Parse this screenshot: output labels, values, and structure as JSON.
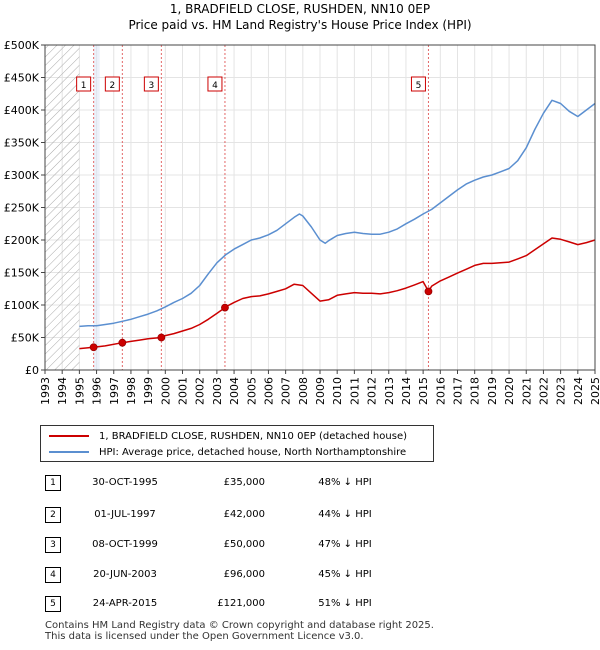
{
  "title_line1": "1, BRADFIELD CLOSE, RUSHDEN, NN10 0EP",
  "title_line2": "Price paid vs. HM Land Registry's House Price Index (HPI)",
  "colors": {
    "property": "#cc0000",
    "hpi": "#5b8fd0",
    "hatch": "#aaaaaa",
    "shade": "#dde6f5"
  },
  "legend": {
    "property": "1, BRADFIELD CLOSE, RUSHDEN, NN10 0EP (detached house)",
    "hpi": "HPI: Average price, detached house, North Northamptonshire"
  },
  "sales": [
    {
      "num": "1",
      "date": "30-OCT-1995",
      "price": "£35,000",
      "hpi": "48% ↓ HPI"
    },
    {
      "num": "2",
      "date": "01-JUL-1997",
      "price": "£42,000",
      "hpi": "44% ↓ HPI"
    },
    {
      "num": "3",
      "date": "08-OCT-1999",
      "price": "£50,000",
      "hpi": "47% ↓ HPI"
    },
    {
      "num": "4",
      "date": "20-JUN-2003",
      "price": "£96,000",
      "hpi": "45% ↓ HPI"
    },
    {
      "num": "5",
      "date": "24-APR-2015",
      "price": "£121,000",
      "hpi": "51% ↓ HPI"
    }
  ],
  "footer_line1": "Contains HM Land Registry data © Crown copyright and database right 2025.",
  "footer_line2": "This data is licensed under the Open Government Licence v3.0.",
  "chart_data": {
    "type": "line",
    "title": "1, BRADFIELD CLOSE, RUSHDEN, NN10 0EP",
    "subtitle": "Price paid vs. HM Land Registry's House Price Index (HPI)",
    "xlim": [
      1993,
      2025
    ],
    "ylim": [
      0,
      500000
    ],
    "y_ticks": [
      0,
      50000,
      100000,
      150000,
      200000,
      250000,
      300000,
      350000,
      400000,
      450000,
      500000
    ],
    "y_tick_labels": [
      "£0",
      "£50K",
      "£100K",
      "£150K",
      "£200K",
      "£250K",
      "£300K",
      "£350K",
      "£400K",
      "£450K",
      "£500K"
    ],
    "x_ticks": [
      1993,
      1994,
      1995,
      1996,
      1997,
      1998,
      1999,
      2000,
      2001,
      2002,
      2003,
      2004,
      2005,
      2006,
      2007,
      2008,
      2009,
      2010,
      2011,
      2012,
      2013,
      2014,
      2015,
      2016,
      2017,
      2018,
      2019,
      2020,
      2021,
      2022,
      2023,
      2024,
      2025
    ],
    "x_tick_labels": [
      "1993",
      "1994",
      "1995",
      "1996",
      "1997",
      "1998",
      "1999",
      "2000",
      "2001",
      "2002",
      "2003",
      "2004",
      "2005",
      "2006",
      "2007",
      "2008",
      "2009",
      "2010",
      "2011",
      "2012",
      "2013",
      "2014",
      "2015",
      "2016",
      "2017",
      "2018",
      "2019",
      "2020",
      "2021",
      "2022",
      "2023",
      "2024",
      "2025"
    ],
    "hatched_until": 1995.0,
    "series": [
      {
        "name": "1, BRADFIELD CLOSE, RUSHDEN, NN10 0EP (detached house)",
        "x": [
          1995.0,
          1995.83,
          1996.5,
          1997.5,
          1998.0,
          1998.5,
          1999.0,
          1999.77,
          2000.0,
          2000.5,
          2001.0,
          2001.5,
          2002.0,
          2002.5,
          2003.0,
          2003.47,
          2003.5,
          2004.0,
          2004.5,
          2005.0,
          2005.5,
          2006.0,
          2006.5,
          2007.0,
          2007.5,
          2008.0,
          2008.5,
          2009.0,
          2009.5,
          2010.0,
          2010.5,
          2011.0,
          2011.5,
          2012.0,
          2012.5,
          2013.0,
          2013.5,
          2014.0,
          2014.5,
          2015.0,
          2015.31,
          2015.5,
          2016.0,
          2016.5,
          2017.0,
          2017.5,
          2018.0,
          2018.5,
          2019.0,
          2019.5,
          2020.0,
          2020.5,
          2021.0,
          2021.5,
          2022.0,
          2022.5,
          2023.0,
          2023.5,
          2024.0,
          2024.5,
          2025.0
        ],
        "values": [
          33000,
          35000,
          37000,
          42000,
          44000,
          46000,
          48000,
          50000,
          53000,
          56000,
          60000,
          64000,
          70000,
          78000,
          87000,
          96000,
          97000,
          104000,
          110000,
          113000,
          114000,
          117000,
          121000,
          125000,
          132000,
          130000,
          118000,
          106000,
          108000,
          115000,
          117000,
          119000,
          118000,
          118000,
          117000,
          119000,
          122000,
          126000,
          131000,
          136000,
          121000,
          129000,
          137000,
          143000,
          149000,
          155000,
          161000,
          164000,
          164000,
          165000,
          166000,
          171000,
          176000,
          185000,
          194000,
          203000,
          201000,
          197000,
          193000,
          196000,
          200000
        ]
      },
      {
        "name": "HPI: Average price, detached house, North Northamptonshire",
        "x": [
          1995.0,
          1995.5,
          1996.0,
          1996.5,
          1997.0,
          1997.5,
          1998.0,
          1998.5,
          1999.0,
          1999.5,
          2000.0,
          2000.5,
          2001.0,
          2001.5,
          2002.0,
          2002.5,
          2003.0,
          2003.5,
          2004.0,
          2004.5,
          2005.0,
          2005.5,
          2006.0,
          2006.5,
          2007.0,
          2007.5,
          2007.8,
          2008.0,
          2008.5,
          2009.0,
          2009.3,
          2009.5,
          2010.0,
          2010.5,
          2011.0,
          2011.5,
          2012.0,
          2012.5,
          2013.0,
          2013.5,
          2014.0,
          2014.5,
          2015.0,
          2015.5,
          2016.0,
          2016.5,
          2017.0,
          2017.5,
          2018.0,
          2018.5,
          2019.0,
          2019.5,
          2020.0,
          2020.5,
          2021.0,
          2021.5,
          2022.0,
          2022.5,
          2023.0,
          2023.5,
          2024.0,
          2024.5,
          2025.0
        ],
        "values": [
          67000,
          68000,
          68000,
          70000,
          72000,
          75000,
          78000,
          82000,
          86000,
          91000,
          97000,
          104000,
          110000,
          118000,
          130000,
          148000,
          165000,
          177000,
          186000,
          193000,
          200000,
          203000,
          208000,
          215000,
          225000,
          235000,
          240000,
          237000,
          220000,
          200000,
          195000,
          199000,
          207000,
          210000,
          212000,
          210000,
          209000,
          209000,
          212000,
          217000,
          225000,
          232000,
          240000,
          247000,
          257000,
          267000,
          277000,
          286000,
          292000,
          297000,
          300000,
          305000,
          310000,
          322000,
          342000,
          370000,
          395000,
          415000,
          410000,
          398000,
          390000,
          400000,
          410000
        ]
      }
    ],
    "sales": [
      {
        "label": "1",
        "x": 1995.83,
        "value": 35000
      },
      {
        "label": "2",
        "x": 1997.5,
        "value": 42000
      },
      {
        "label": "3",
        "x": 1999.77,
        "value": 50000
      },
      {
        "label": "4",
        "x": 2003.47,
        "value": 96000
      },
      {
        "label": "5",
        "x": 2015.31,
        "value": 121000
      }
    ]
  }
}
